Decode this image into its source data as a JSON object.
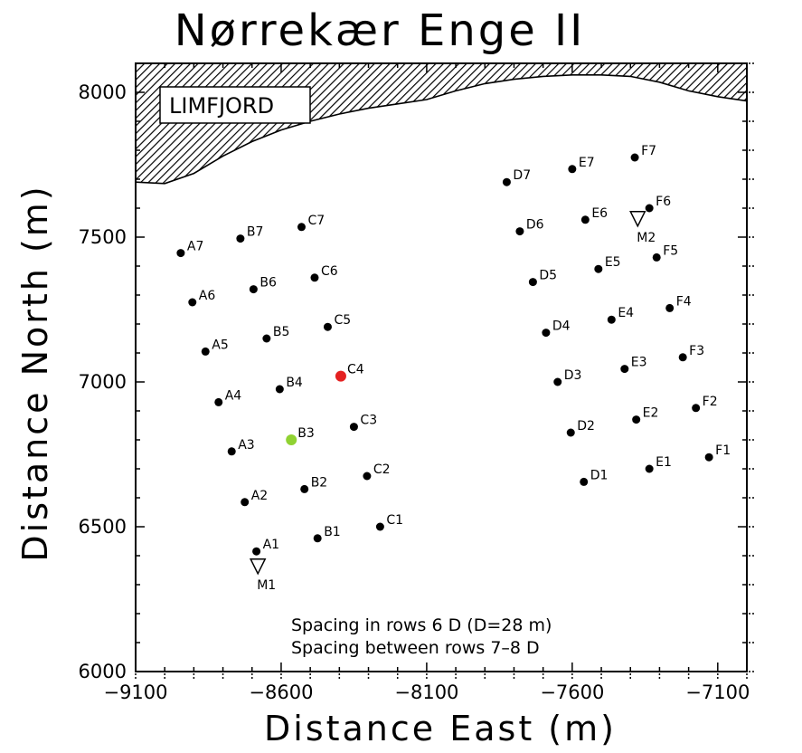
{
  "chart_data": {
    "type": "scatter",
    "title": "Nørrekær Enge II",
    "xlabel": "Distance East (m)",
    "ylabel": "Distance North (m)",
    "xlim": [
      -9100,
      -7000
    ],
    "ylim": [
      6000,
      8100
    ],
    "xticks": [
      -9100,
      -8600,
      -8100,
      -7600,
      -7100
    ],
    "xtick_labels": [
      "−9100",
      "−8600",
      "−8100",
      "−7600",
      "−7100"
    ],
    "yticks": [
      6000,
      6500,
      7000,
      7500,
      8000
    ],
    "ytick_labels": [
      "6000",
      "6500",
      "7000",
      "7500",
      "8000"
    ],
    "region_label": "LIMFJORD",
    "shoreline": [
      {
        "x": -9100,
        "y": 7690
      },
      {
        "x": -9000,
        "y": 7685
      },
      {
        "x": -8900,
        "y": 7720
      },
      {
        "x": -8800,
        "y": 7780
      },
      {
        "x": -8700,
        "y": 7830
      },
      {
        "x": -8600,
        "y": 7870
      },
      {
        "x": -8500,
        "y": 7900
      },
      {
        "x": -8400,
        "y": 7925
      },
      {
        "x": -8300,
        "y": 7945
      },
      {
        "x": -8200,
        "y": 7960
      },
      {
        "x": -8100,
        "y": 7975
      },
      {
        "x": -8000,
        "y": 8005
      },
      {
        "x": -7900,
        "y": 8030
      },
      {
        "x": -7800,
        "y": 8045
      },
      {
        "x": -7700,
        "y": 8055
      },
      {
        "x": -7600,
        "y": 8060
      },
      {
        "x": -7500,
        "y": 8060
      },
      {
        "x": -7400,
        "y": 8055
      },
      {
        "x": -7300,
        "y": 8035
      },
      {
        "x": -7200,
        "y": 8005
      },
      {
        "x": -7100,
        "y": 7985
      },
      {
        "x": -7000,
        "y": 7970
      }
    ],
    "turbines": [
      {
        "name": "A1",
        "x": -8685,
        "y": 6415,
        "color": "#000000"
      },
      {
        "name": "A2",
        "x": -8725,
        "y": 6585,
        "color": "#000000"
      },
      {
        "name": "A3",
        "x": -8770,
        "y": 6760,
        "color": "#000000"
      },
      {
        "name": "A4",
        "x": -8815,
        "y": 6930,
        "color": "#000000"
      },
      {
        "name": "A5",
        "x": -8860,
        "y": 7105,
        "color": "#000000"
      },
      {
        "name": "A6",
        "x": -8905,
        "y": 7275,
        "color": "#000000"
      },
      {
        "name": "A7",
        "x": -8945,
        "y": 7445,
        "color": "#000000"
      },
      {
        "name": "B1",
        "x": -8475,
        "y": 6460,
        "color": "#000000"
      },
      {
        "name": "B2",
        "x": -8520,
        "y": 6630,
        "color": "#000000"
      },
      {
        "name": "B3",
        "x": -8565,
        "y": 6800,
        "color": "#90d232"
      },
      {
        "name": "B4",
        "x": -8605,
        "y": 6975,
        "color": "#000000"
      },
      {
        "name": "B5",
        "x": -8650,
        "y": 7150,
        "color": "#000000"
      },
      {
        "name": "B6",
        "x": -8695,
        "y": 7320,
        "color": "#000000"
      },
      {
        "name": "B7",
        "x": -8740,
        "y": 7495,
        "color": "#000000"
      },
      {
        "name": "C1",
        "x": -8260,
        "y": 6500,
        "color": "#000000"
      },
      {
        "name": "C2",
        "x": -8305,
        "y": 6675,
        "color": "#000000"
      },
      {
        "name": "C3",
        "x": -8350,
        "y": 6845,
        "color": "#000000"
      },
      {
        "name": "C4",
        "x": -8395,
        "y": 7020,
        "color": "#e42121"
      },
      {
        "name": "C5",
        "x": -8440,
        "y": 7190,
        "color": "#000000"
      },
      {
        "name": "C6",
        "x": -8485,
        "y": 7360,
        "color": "#000000"
      },
      {
        "name": "C7",
        "x": -8530,
        "y": 7535,
        "color": "#000000"
      },
      {
        "name": "D1",
        "x": -7560,
        "y": 6655,
        "color": "#000000"
      },
      {
        "name": "D2",
        "x": -7605,
        "y": 6825,
        "color": "#000000"
      },
      {
        "name": "D3",
        "x": -7650,
        "y": 7000,
        "color": "#000000"
      },
      {
        "name": "D4",
        "x": -7690,
        "y": 7170,
        "color": "#000000"
      },
      {
        "name": "D5",
        "x": -7735,
        "y": 7345,
        "color": "#000000"
      },
      {
        "name": "D6",
        "x": -7780,
        "y": 7520,
        "color": "#000000"
      },
      {
        "name": "D7",
        "x": -7825,
        "y": 7690,
        "color": "#000000"
      },
      {
        "name": "E1",
        "x": -7335,
        "y": 6700,
        "color": "#000000"
      },
      {
        "name": "E2",
        "x": -7380,
        "y": 6870,
        "color": "#000000"
      },
      {
        "name": "E3",
        "x": -7420,
        "y": 7045,
        "color": "#000000"
      },
      {
        "name": "E4",
        "x": -7465,
        "y": 7215,
        "color": "#000000"
      },
      {
        "name": "E5",
        "x": -7510,
        "y": 7390,
        "color": "#000000"
      },
      {
        "name": "E6",
        "x": -7555,
        "y": 7560,
        "color": "#000000"
      },
      {
        "name": "E7",
        "x": -7600,
        "y": 7735,
        "color": "#000000"
      },
      {
        "name": "F1",
        "x": -7130,
        "y": 6740,
        "color": "#000000"
      },
      {
        "name": "F2",
        "x": -7175,
        "y": 6910,
        "color": "#000000"
      },
      {
        "name": "F3",
        "x": -7220,
        "y": 7085,
        "color": "#000000"
      },
      {
        "name": "F4",
        "x": -7265,
        "y": 7255,
        "color": "#000000"
      },
      {
        "name": "F5",
        "x": -7310,
        "y": 7430,
        "color": "#000000"
      },
      {
        "name": "F6",
        "x": -7335,
        "y": 7600,
        "color": "#000000"
      },
      {
        "name": "F7",
        "x": -7385,
        "y": 7775,
        "color": "#000000"
      }
    ],
    "masts": [
      {
        "name": "M1",
        "x": -8680,
        "y": 6360
      },
      {
        "name": "M2",
        "x": -7375,
        "y": 7560
      }
    ],
    "annotations": [
      "Spacing in rows 6 D (D=28 m)",
      "Spacing between rows 7–8 D"
    ]
  }
}
